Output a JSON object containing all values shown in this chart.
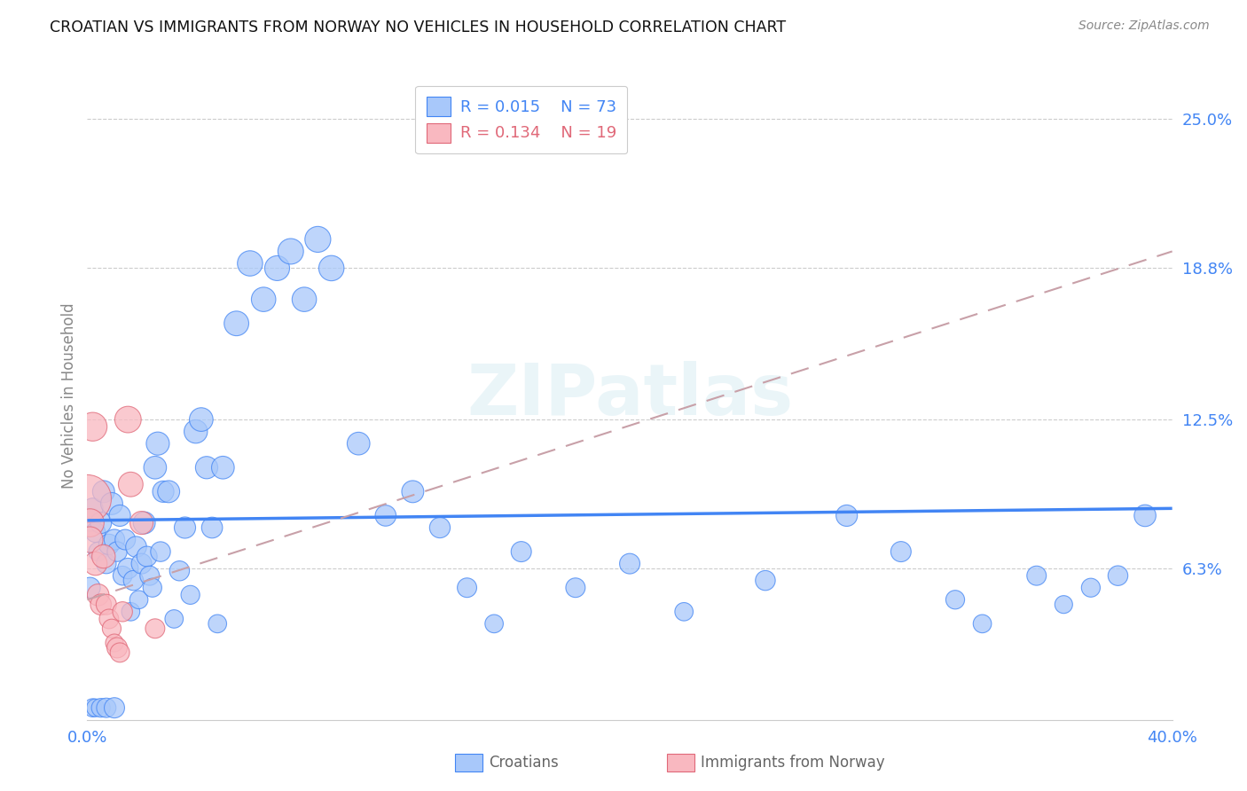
{
  "title": "CROATIAN VS IMMIGRANTS FROM NORWAY NO VEHICLES IN HOUSEHOLD CORRELATION CHART",
  "source": "Source: ZipAtlas.com",
  "ylabel": "No Vehicles in Household",
  "watermark": "ZIPatlas",
  "croatians_R": 0.015,
  "croatians_N": 73,
  "immigrants_R": 0.134,
  "immigrants_N": 19,
  "croatian_color": "#a8c8fa",
  "croatian_edge": "#4285f4",
  "immigrant_color": "#f9b8c0",
  "immigrant_edge": "#e06878",
  "trend_cro_color": "#4285f4",
  "trend_imm_color": "#c8a0a8",
  "xlim": [
    0.0,
    0.4
  ],
  "ylim": [
    0.0,
    0.27
  ],
  "ytick_vals": [
    0.063,
    0.125,
    0.188,
    0.25
  ],
  "ytick_labels": [
    "6.3%",
    "12.5%",
    "18.8%",
    "25.0%"
  ],
  "cro_trend_y0": 0.083,
  "cro_trend_y1": 0.088,
  "imm_trend_y0": 0.05,
  "imm_trend_y1": 0.195,
  "cro_x": [
    0.001,
    0.002,
    0.003,
    0.004,
    0.005,
    0.006,
    0.007,
    0.008,
    0.009,
    0.01,
    0.011,
    0.012,
    0.013,
    0.014,
    0.015,
    0.016,
    0.017,
    0.018,
    0.019,
    0.02,
    0.021,
    0.022,
    0.023,
    0.024,
    0.025,
    0.026,
    0.027,
    0.028,
    0.03,
    0.032,
    0.034,
    0.036,
    0.038,
    0.04,
    0.042,
    0.044,
    0.046,
    0.048,
    0.05,
    0.055,
    0.06,
    0.065,
    0.07,
    0.075,
    0.08,
    0.085,
    0.09,
    0.1,
    0.11,
    0.12,
    0.13,
    0.14,
    0.15,
    0.16,
    0.18,
    0.2,
    0.22,
    0.25,
    0.28,
    0.3,
    0.32,
    0.33,
    0.35,
    0.36,
    0.37,
    0.38,
    0.39,
    0.001,
    0.002,
    0.003,
    0.005,
    0.007,
    0.01
  ],
  "cro_y": [
    0.083,
    0.088,
    0.078,
    0.07,
    0.082,
    0.095,
    0.065,
    0.073,
    0.09,
    0.075,
    0.07,
    0.085,
    0.06,
    0.075,
    0.063,
    0.045,
    0.058,
    0.072,
    0.05,
    0.065,
    0.082,
    0.068,
    0.06,
    0.055,
    0.105,
    0.115,
    0.07,
    0.095,
    0.095,
    0.042,
    0.062,
    0.08,
    0.052,
    0.12,
    0.125,
    0.105,
    0.08,
    0.04,
    0.105,
    0.165,
    0.19,
    0.175,
    0.188,
    0.195,
    0.175,
    0.2,
    0.188,
    0.115,
    0.085,
    0.095,
    0.08,
    0.055,
    0.04,
    0.07,
    0.055,
    0.065,
    0.045,
    0.058,
    0.085,
    0.07,
    0.05,
    0.04,
    0.06,
    0.048,
    0.055,
    0.06,
    0.085,
    0.055,
    0.005,
    0.005,
    0.005,
    0.005,
    0.005
  ],
  "cro_s": [
    80,
    70,
    65,
    60,
    75,
    80,
    65,
    70,
    80,
    70,
    65,
    75,
    60,
    68,
    70,
    55,
    65,
    72,
    55,
    68,
    80,
    68,
    62,
    58,
    85,
    88,
    65,
    75,
    80,
    55,
    65,
    75,
    58,
    90,
    92,
    82,
    72,
    55,
    85,
    100,
    105,
    98,
    102,
    108,
    98,
    110,
    105,
    85,
    72,
    80,
    70,
    62,
    55,
    68,
    62,
    68,
    55,
    65,
    75,
    68,
    58,
    55,
    62,
    52,
    58,
    65,
    78,
    70,
    55,
    52,
    58,
    62,
    68
  ],
  "imm_x": [
    0.0,
    0.001,
    0.001,
    0.002,
    0.003,
    0.004,
    0.005,
    0.006,
    0.007,
    0.008,
    0.009,
    0.01,
    0.011,
    0.012,
    0.013,
    0.015,
    0.016,
    0.02,
    0.025
  ],
  "imm_y": [
    0.092,
    0.082,
    0.075,
    0.122,
    0.065,
    0.052,
    0.048,
    0.068,
    0.048,
    0.042,
    0.038,
    0.032,
    0.03,
    0.028,
    0.045,
    0.125,
    0.098,
    0.082,
    0.038
  ],
  "imm_s": [
    380,
    130,
    110,
    135,
    90,
    78,
    72,
    90,
    68,
    62,
    58,
    52,
    68,
    62,
    65,
    115,
    100,
    88,
    62
  ]
}
